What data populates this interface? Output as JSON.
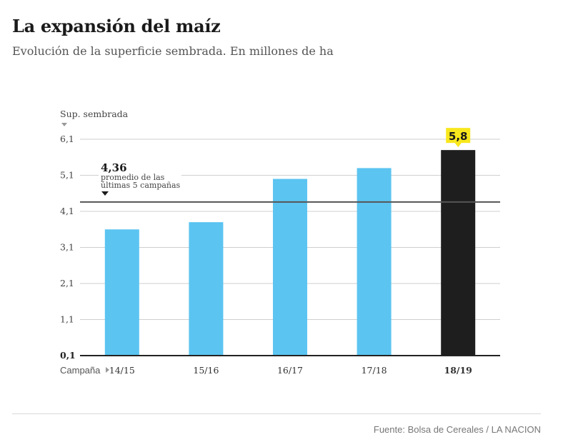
{
  "title": "La expansión del maíz",
  "subtitle": "Evolución de la superficie sembrada. En millones de ha",
  "source": "Fuente: Bolsa de Cereales / LA NACION",
  "colors": {
    "bar": "#5bc4f1",
    "highlight_bar": "#1e1e1e",
    "callout": "#f8e71c",
    "average_line": "#555555",
    "axis": "#222222",
    "grid": "#cfcfcf"
  },
  "chart_data": {
    "type": "bar",
    "title": "La expansión del maíz",
    "subtitle": "Evolución de la superficie sembrada. En millones de ha",
    "ylabel": "Sup. sembrada",
    "xlabel": "Campaña",
    "categories": [
      "14/15",
      "15/16",
      "16/17",
      "17/18",
      "18/19"
    ],
    "values": [
      3.6,
      3.8,
      5.0,
      5.3,
      5.8
    ],
    "highlight_index": 4,
    "highlight_label": "5,8",
    "ylim": [
      0.1,
      6.1
    ],
    "yticks": [
      0.1,
      1.1,
      2.1,
      3.1,
      4.1,
      5.1,
      6.1
    ],
    "ytick_labels": [
      "0,1",
      "1,1",
      "2,1",
      "3,1",
      "4,1",
      "5,1",
      "6,1"
    ],
    "grid": true,
    "reference_line": {
      "value": 4.36,
      "label": "4,36",
      "note_lines": [
        "promedio de las",
        "últimas 5 campañas"
      ]
    }
  }
}
